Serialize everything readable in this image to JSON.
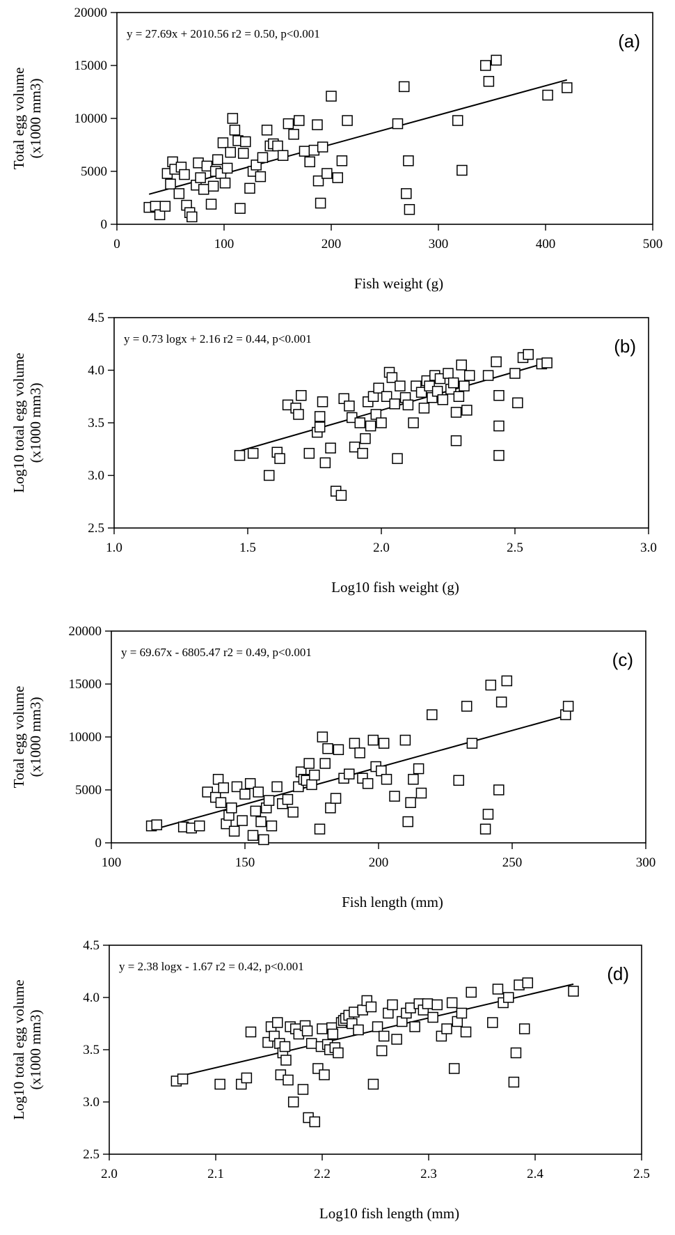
{
  "chart_data": [
    {
      "type": "scatter",
      "panel_label": "(a)",
      "equation": "y = 27.69x + 2010.56    r2 = 0.50,  p<0.001",
      "xlabel": "Fish weight (g)",
      "ylabel": [
        "Total egg volume",
        "(x1000 mm3)"
      ],
      "xlim": [
        0,
        500
      ],
      "ylim": [
        0,
        20000
      ],
      "xticks": [
        0,
        100,
        200,
        300,
        400,
        500
      ],
      "yticks": [
        0,
        5000,
        10000,
        15000,
        20000
      ],
      "xtick_labels": [
        "0",
        "100",
        "200",
        "300",
        "400",
        "500"
      ],
      "ytick_labels": [
        "0",
        "5000",
        "10000",
        "15000",
        "20000"
      ],
      "fit_line": {
        "x": [
          30,
          420
        ],
        "slope": 27.69,
        "intercept": 2010.56
      },
      "points": [
        [
          30,
          1600
        ],
        [
          36,
          1700
        ],
        [
          40,
          900
        ],
        [
          45,
          1700
        ],
        [
          47,
          4800
        ],
        [
          50,
          3800
        ],
        [
          52,
          5900
        ],
        [
          54,
          5200
        ],
        [
          58,
          2900
        ],
        [
          60,
          5400
        ],
        [
          63,
          4700
        ],
        [
          65,
          1800
        ],
        [
          68,
          1100
        ],
        [
          70,
          700
        ],
        [
          74,
          3700
        ],
        [
          76,
          5800
        ],
        [
          78,
          4400
        ],
        [
          81,
          3300
        ],
        [
          84,
          5500
        ],
        [
          88,
          1900
        ],
        [
          90,
          3600
        ],
        [
          92,
          5000
        ],
        [
          94,
          6100
        ],
        [
          97,
          4800
        ],
        [
          99,
          7700
        ],
        [
          101,
          3900
        ],
        [
          103,
          5300
        ],
        [
          106,
          6800
        ],
        [
          108,
          10000
        ],
        [
          110,
          8900
        ],
        [
          113,
          7900
        ],
        [
          115,
          1500
        ],
        [
          118,
          6700
        ],
        [
          120,
          7800
        ],
        [
          124,
          3400
        ],
        [
          127,
          5000
        ],
        [
          130,
          5600
        ],
        [
          134,
          4500
        ],
        [
          136,
          6300
        ],
        [
          140,
          8900
        ],
        [
          143,
          7400
        ],
        [
          146,
          7600
        ],
        [
          150,
          7400
        ],
        [
          155,
          6500
        ],
        [
          160,
          9500
        ],
        [
          165,
          8500
        ],
        [
          170,
          9800
        ],
        [
          175,
          6900
        ],
        [
          180,
          5900
        ],
        [
          184,
          7000
        ],
        [
          187,
          9400
        ],
        [
          188,
          4100
        ],
        [
          190,
          2000
        ],
        [
          192,
          7300
        ],
        [
          196,
          4800
        ],
        [
          200,
          12100
        ],
        [
          206,
          4400
        ],
        [
          210,
          6000
        ],
        [
          215,
          9800
        ],
        [
          262,
          9500
        ],
        [
          268,
          13000
        ],
        [
          270,
          2900
        ],
        [
          272,
          6000
        ],
        [
          273,
          1400
        ],
        [
          318,
          9800
        ],
        [
          322,
          5100
        ],
        [
          344,
          15000
        ],
        [
          347,
          13500
        ],
        [
          354,
          15500
        ],
        [
          402,
          12200
        ],
        [
          420,
          12900
        ]
      ]
    },
    {
      "type": "scatter",
      "panel_label": "(b)",
      "equation": "y = 0.73 logx + 2.16    r2 = 0.44,  p<0.001",
      "xlabel": "Log10 fish weight (g)",
      "ylabel": [
        "Log10 total egg volume",
        "(x1000 mm3)"
      ],
      "xlim": [
        1.0,
        3.0
      ],
      "ylim": [
        2.5,
        4.5
      ],
      "xticks": [
        1.0,
        1.5,
        2.0,
        2.5,
        3.0
      ],
      "yticks": [
        2.5,
        3.0,
        3.5,
        4.0,
        4.5
      ],
      "xtick_labels": [
        "1.0",
        "1.5",
        "2.0",
        "2.5",
        "3.0"
      ],
      "ytick_labels": [
        "2.5",
        "3.0",
        "3.5",
        "4.0",
        "4.5"
      ],
      "fit_line": {
        "x": [
          1.47,
          2.62
        ],
        "slope": 0.73,
        "intercept": 2.16
      },
      "points": [
        [
          1.47,
          3.19
        ],
        [
          1.52,
          3.21
        ],
        [
          1.58,
          3.0
        ],
        [
          1.61,
          3.22
        ],
        [
          1.62,
          3.16
        ],
        [
          1.65,
          3.67
        ],
        [
          1.68,
          3.64
        ],
        [
          1.69,
          3.58
        ],
        [
          1.7,
          3.76
        ],
        [
          1.73,
          3.21
        ],
        [
          1.76,
          3.41
        ],
        [
          1.77,
          3.56
        ],
        [
          1.77,
          3.46
        ],
        [
          1.78,
          3.7
        ],
        [
          1.79,
          3.12
        ],
        [
          1.81,
          3.26
        ],
        [
          1.83,
          2.85
        ],
        [
          1.85,
          2.81
        ],
        [
          1.86,
          3.73
        ],
        [
          1.88,
          3.66
        ],
        [
          1.89,
          3.55
        ],
        [
          1.9,
          3.27
        ],
        [
          1.92,
          3.5
        ],
        [
          1.93,
          3.21
        ],
        [
          1.94,
          3.35
        ],
        [
          1.95,
          3.7
        ],
        [
          1.96,
          3.47
        ],
        [
          1.97,
          3.75
        ],
        [
          1.98,
          3.58
        ],
        [
          1.99,
          3.83
        ],
        [
          2.0,
          3.5
        ],
        [
          2.02,
          3.75
        ],
        [
          2.03,
          3.98
        ],
        [
          2.04,
          3.93
        ],
        [
          2.05,
          3.68
        ],
        [
          2.06,
          3.16
        ],
        [
          2.07,
          3.85
        ],
        [
          2.09,
          3.74
        ],
        [
          2.1,
          3.67
        ],
        [
          2.12,
          3.5
        ],
        [
          2.13,
          3.85
        ],
        [
          2.15,
          3.79
        ],
        [
          2.16,
          3.64
        ],
        [
          2.17,
          3.9
        ],
        [
          2.18,
          3.85
        ],
        [
          2.19,
          3.74
        ],
        [
          2.2,
          3.95
        ],
        [
          2.21,
          3.8
        ],
        [
          2.22,
          3.92
        ],
        [
          2.23,
          3.72
        ],
        [
          2.25,
          3.97
        ],
        [
          2.26,
          3.82
        ],
        [
          2.27,
          3.88
        ],
        [
          2.28,
          3.6
        ],
        [
          2.28,
          3.33
        ],
        [
          2.29,
          3.75
        ],
        [
          2.3,
          4.05
        ],
        [
          2.31,
          3.85
        ],
        [
          2.32,
          3.62
        ],
        [
          2.33,
          3.95
        ],
        [
          2.4,
          3.95
        ],
        [
          2.43,
          4.08
        ],
        [
          2.44,
          3.76
        ],
        [
          2.44,
          3.47
        ],
        [
          2.44,
          3.19
        ],
        [
          2.5,
          3.97
        ],
        [
          2.51,
          3.69
        ],
        [
          2.53,
          4.12
        ],
        [
          2.55,
          4.15
        ],
        [
          2.6,
          4.06
        ],
        [
          2.62,
          4.07
        ]
      ]
    },
    {
      "type": "scatter",
      "panel_label": "(c)",
      "equation": "y = 69.67x - 6805.47    r2 = 0.49,  p<0.001",
      "xlabel": "Fish length (mm)",
      "ylabel": [
        "Total egg volume",
        "(x1000 mm3)"
      ],
      "xlim": [
        100,
        300
      ],
      "ylim": [
        0,
        20000
      ],
      "xticks": [
        100,
        150,
        200,
        250,
        300
      ],
      "yticks": [
        0,
        5000,
        10000,
        15000,
        20000
      ],
      "xtick_labels": [
        "100",
        "150",
        "200",
        "250",
        "300"
      ],
      "ytick_labels": [
        "0",
        "5000",
        "10000",
        "15000",
        "20000"
      ],
      "fit_line": {
        "x": [
          115,
          271
        ],
        "slope": 69.67,
        "intercept": -6805.47
      },
      "points": [
        [
          115,
          1600
        ],
        [
          117,
          1700
        ],
        [
          127,
          1500
        ],
        [
          130,
          1400
        ],
        [
          133,
          1600
        ],
        [
          136,
          4800
        ],
        [
          139,
          4300
        ],
        [
          140,
          6000
        ],
        [
          141,
          3800
        ],
        [
          142,
          5200
        ],
        [
          143,
          1800
        ],
        [
          144,
          2600
        ],
        [
          145,
          3300
        ],
        [
          146,
          1100
        ],
        [
          147,
          5300
        ],
        [
          149,
          2100
        ],
        [
          150,
          4600
        ],
        [
          152,
          5600
        ],
        [
          153,
          700
        ],
        [
          154,
          3000
        ],
        [
          155,
          4800
        ],
        [
          156,
          2000
        ],
        [
          157,
          300
        ],
        [
          158,
          3300
        ],
        [
          159,
          4000
        ],
        [
          160,
          1600
        ],
        [
          162,
          5300
        ],
        [
          164,
          3700
        ],
        [
          166,
          4100
        ],
        [
          168,
          2900
        ],
        [
          170,
          5300
        ],
        [
          171,
          6700
        ],
        [
          172,
          6000
        ],
        [
          173,
          5900
        ],
        [
          174,
          7500
        ],
        [
          175,
          5500
        ],
        [
          176,
          6400
        ],
        [
          178,
          1300
        ],
        [
          179,
          10000
        ],
        [
          180,
          7500
        ],
        [
          181,
          8900
        ],
        [
          182,
          3300
        ],
        [
          184,
          4200
        ],
        [
          185,
          8800
        ],
        [
          187,
          6100
        ],
        [
          189,
          6500
        ],
        [
          191,
          9400
        ],
        [
          193,
          8500
        ],
        [
          194,
          6100
        ],
        [
          196,
          5600
        ],
        [
          198,
          9700
        ],
        [
          199,
          7200
        ],
        [
          201,
          6800
        ],
        [
          202,
          9400
        ],
        [
          203,
          6000
        ],
        [
          206,
          4400
        ],
        [
          210,
          9700
        ],
        [
          211,
          2000
        ],
        [
          212,
          3800
        ],
        [
          213,
          6000
        ],
        [
          215,
          7000
        ],
        [
          216,
          4700
        ],
        [
          220,
          12100
        ],
        [
          230,
          5900
        ],
        [
          233,
          12900
        ],
        [
          235,
          9400
        ],
        [
          240,
          1300
        ],
        [
          241,
          2700
        ],
        [
          242,
          14900
        ],
        [
          245,
          5000
        ],
        [
          246,
          13300
        ],
        [
          248,
          15300
        ],
        [
          270,
          12100
        ],
        [
          271,
          12900
        ]
      ]
    },
    {
      "type": "scatter",
      "panel_label": "(d)",
      "equation": "y = 2.38 logx - 1.67    r2 = 0.42,  p<0.001",
      "xlabel": "Log10 fish length (mm)",
      "ylabel": [
        "Log10 total egg volume",
        "(x1000 mm3)"
      ],
      "xlim": [
        2.0,
        2.5
      ],
      "ylim": [
        2.5,
        4.5
      ],
      "xticks": [
        2.0,
        2.1,
        2.2,
        2.3,
        2.4,
        2.5
      ],
      "yticks": [
        2.5,
        3.0,
        3.5,
        4.0,
        4.5
      ],
      "xtick_labels": [
        "2.0",
        "2.1",
        "2.2",
        "2.3",
        "2.4",
        "2.5"
      ],
      "ytick_labels": [
        "2.5",
        "3.0",
        "3.5",
        "4.0",
        "4.5"
      ],
      "fit_line": {
        "x": [
          2.063,
          2.436
        ],
        "slope": 2.38,
        "intercept": -1.67
      },
      "points": [
        [
          2.063,
          3.2
        ],
        [
          2.069,
          3.22
        ],
        [
          2.104,
          3.17
        ],
        [
          2.124,
          3.17
        ],
        [
          2.129,
          3.23
        ],
        [
          2.133,
          3.67
        ],
        [
          2.149,
          3.57
        ],
        [
          2.152,
          3.72
        ],
        [
          2.155,
          3.63
        ],
        [
          2.158,
          3.76
        ],
        [
          2.16,
          3.56
        ],
        [
          2.161,
          3.26
        ],
        [
          2.163,
          3.47
        ],
        [
          2.165,
          3.53
        ],
        [
          2.166,
          3.4
        ],
        [
          2.168,
          3.21
        ],
        [
          2.17,
          3.72
        ],
        [
          2.173,
          3.0
        ],
        [
          2.175,
          3.7
        ],
        [
          2.178,
          3.65
        ],
        [
          2.182,
          3.12
        ],
        [
          2.184,
          3.73
        ],
        [
          2.186,
          3.68
        ],
        [
          2.187,
          2.85
        ],
        [
          2.19,
          3.56
        ],
        [
          2.193,
          2.81
        ],
        [
          2.196,
          3.32
        ],
        [
          2.199,
          3.53
        ],
        [
          2.2,
          3.7
        ],
        [
          2.202,
          3.26
        ],
        [
          2.205,
          3.55
        ],
        [
          2.207,
          3.5
        ],
        [
          2.209,
          3.71
        ],
        [
          2.21,
          3.65
        ],
        [
          2.212,
          3.52
        ],
        [
          2.215,
          3.47
        ],
        [
          2.218,
          3.76
        ],
        [
          2.22,
          3.78
        ],
        [
          2.222,
          3.8
        ],
        [
          2.225,
          3.83
        ],
        [
          2.228,
          3.75
        ],
        [
          2.23,
          3.86
        ],
        [
          2.234,
          3.69
        ],
        [
          2.238,
          3.88
        ],
        [
          2.242,
          3.97
        ],
        [
          2.246,
          3.91
        ],
        [
          2.248,
          3.17
        ],
        [
          2.252,
          3.72
        ],
        [
          2.256,
          3.49
        ],
        [
          2.258,
          3.63
        ],
        [
          2.262,
          3.85
        ],
        [
          2.266,
          3.93
        ],
        [
          2.27,
          3.6
        ],
        [
          2.275,
          3.77
        ],
        [
          2.279,
          3.85
        ],
        [
          2.283,
          3.9
        ],
        [
          2.287,
          3.72
        ],
        [
          2.291,
          3.94
        ],
        [
          2.295,
          3.88
        ],
        [
          2.299,
          3.94
        ],
        [
          2.304,
          3.81
        ],
        [
          2.308,
          3.93
        ],
        [
          2.312,
          3.63
        ],
        [
          2.317,
          3.7
        ],
        [
          2.322,
          3.95
        ],
        [
          2.324,
          3.32
        ],
        [
          2.327,
          3.77
        ],
        [
          2.331,
          3.85
        ],
        [
          2.335,
          3.67
        ],
        [
          2.34,
          4.05
        ],
        [
          2.36,
          3.76
        ],
        [
          2.365,
          4.08
        ],
        [
          2.37,
          3.95
        ],
        [
          2.375,
          4.0
        ],
        [
          2.38,
          3.19
        ],
        [
          2.382,
          3.47
        ],
        [
          2.385,
          4.12
        ],
        [
          2.39,
          3.7
        ],
        [
          2.393,
          4.14
        ],
        [
          2.436,
          4.06
        ]
      ]
    }
  ]
}
